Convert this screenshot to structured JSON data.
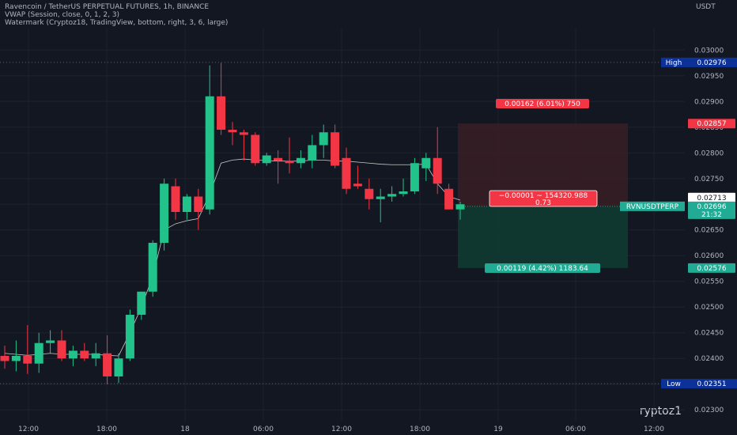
{
  "header": {
    "line1": "Ravencoin / TetherUS PERPETUAL FUTURES, 1h, BINANCE",
    "line2": "VWAP (Session, close, 0, 1, 2, 3)",
    "line3": "Watermark (Cryptoz18, TradingView, bottom, right, 3, 6, large)"
  },
  "currency": "USDT",
  "brand": "ryptoz1",
  "colors": {
    "bg": "#131722",
    "up": "#22ab94",
    "upBody": "#26c78f",
    "down": "#f23645",
    "vwap": "#c8c8c8",
    "grid": "#1e222d",
    "text": "#b2b5be",
    "profit": "#0f3d33",
    "loss": "#3a1e24",
    "high_label": "#0c3299"
  },
  "chart_data": {
    "type": "candlestick",
    "symbol": "RVNUSDTPERP",
    "x_ticks": [
      "12:00",
      "18:00",
      "18",
      "06:00",
      "12:00",
      "18:00",
      "19",
      "06:00",
      "12:00"
    ],
    "y_ticks": [
      "0.03000",
      "0.02950",
      "0.02900",
      "0.02850",
      "0.02800",
      "0.02750",
      "0.02700",
      "0.02650",
      "0.02600",
      "0.02550",
      "0.02500",
      "0.02450",
      "0.02400",
      "0.02350",
      "0.02300"
    ],
    "ylim": [
      0.02288,
      0.03042
    ],
    "high": {
      "label": "High",
      "value": "0.02976"
    },
    "low": {
      "label": "Low",
      "value": "0.02351"
    },
    "last_price": {
      "value": "0.02696",
      "countdown": "21:32"
    },
    "price_labels": [
      {
        "value": "0.02857",
        "kind": "stop"
      },
      {
        "value": "0.02713",
        "kind": "neutral"
      },
      {
        "value": "0.02695",
        "kind": "neutral"
      },
      {
        "value": "0.02576",
        "kind": "target"
      }
    ],
    "position": {
      "entry": 0.02696,
      "stop": 0.02857,
      "target": 0.02576,
      "stop_text": "0.00162 (6.01%) 750",
      "target_text": "0.00119 (4.42%) 1183.64",
      "center_line1": "−0.00001 ~ 154320.988",
      "center_line2": "0.73"
    },
    "candles": [
      {
        "o": 0.02405,
        "h": 0.02425,
        "l": 0.0238,
        "c": 0.02395
      },
      {
        "o": 0.02395,
        "h": 0.02435,
        "l": 0.02375,
        "c": 0.02405
      },
      {
        "o": 0.02405,
        "h": 0.02465,
        "l": 0.0237,
        "c": 0.0239
      },
      {
        "o": 0.0239,
        "h": 0.0245,
        "l": 0.02372,
        "c": 0.0243
      },
      {
        "o": 0.0243,
        "h": 0.02455,
        "l": 0.0241,
        "c": 0.02435
      },
      {
        "o": 0.02435,
        "h": 0.02455,
        "l": 0.02395,
        "c": 0.024
      },
      {
        "o": 0.024,
        "h": 0.02425,
        "l": 0.02385,
        "c": 0.02415
      },
      {
        "o": 0.02415,
        "h": 0.0243,
        "l": 0.02395,
        "c": 0.024
      },
      {
        "o": 0.024,
        "h": 0.0243,
        "l": 0.02385,
        "c": 0.0241
      },
      {
        "o": 0.0241,
        "h": 0.02445,
        "l": 0.0235,
        "c": 0.02365
      },
      {
        "o": 0.02365,
        "h": 0.0241,
        "l": 0.02352,
        "c": 0.024
      },
      {
        "o": 0.024,
        "h": 0.02495,
        "l": 0.02395,
        "c": 0.02485
      },
      {
        "o": 0.02485,
        "h": 0.0253,
        "l": 0.02475,
        "c": 0.0253
      },
      {
        "o": 0.0253,
        "h": 0.0263,
        "l": 0.0252,
        "c": 0.02625
      },
      {
        "o": 0.02625,
        "h": 0.0275,
        "l": 0.0261,
        "c": 0.0274
      },
      {
        "o": 0.02735,
        "h": 0.0275,
        "l": 0.0267,
        "c": 0.02685
      },
      {
        "o": 0.02685,
        "h": 0.0272,
        "l": 0.0267,
        "c": 0.02715
      },
      {
        "o": 0.02715,
        "h": 0.0273,
        "l": 0.0265,
        "c": 0.02685
      },
      {
        "o": 0.0269,
        "h": 0.0297,
        "l": 0.0268,
        "c": 0.0291
      },
      {
        "o": 0.0291,
        "h": 0.02975,
        "l": 0.02835,
        "c": 0.02845
      },
      {
        "o": 0.02845,
        "h": 0.0286,
        "l": 0.02815,
        "c": 0.0284
      },
      {
        "o": 0.0284,
        "h": 0.02845,
        "l": 0.02785,
        "c": 0.02835
      },
      {
        "o": 0.02835,
        "h": 0.0284,
        "l": 0.02775,
        "c": 0.0278
      },
      {
        "o": 0.0278,
        "h": 0.028,
        "l": 0.02775,
        "c": 0.02795
      },
      {
        "o": 0.0279,
        "h": 0.02805,
        "l": 0.0274,
        "c": 0.02785
      },
      {
        "o": 0.02785,
        "h": 0.0283,
        "l": 0.0276,
        "c": 0.0278
      },
      {
        "o": 0.0278,
        "h": 0.02805,
        "l": 0.0277,
        "c": 0.0279
      },
      {
        "o": 0.02785,
        "h": 0.02835,
        "l": 0.0277,
        "c": 0.02815
      },
      {
        "o": 0.02815,
        "h": 0.02855,
        "l": 0.0279,
        "c": 0.0284
      },
      {
        "o": 0.0284,
        "h": 0.02855,
        "l": 0.0277,
        "c": 0.02775
      },
      {
        "o": 0.0279,
        "h": 0.0281,
        "l": 0.0272,
        "c": 0.0273
      },
      {
        "o": 0.0274,
        "h": 0.02775,
        "l": 0.0273,
        "c": 0.02735
      },
      {
        "o": 0.0273,
        "h": 0.0275,
        "l": 0.0269,
        "c": 0.0271
      },
      {
        "o": 0.0271,
        "h": 0.0273,
        "l": 0.02665,
        "c": 0.02715
      },
      {
        "o": 0.02715,
        "h": 0.02735,
        "l": 0.02705,
        "c": 0.0272
      },
      {
        "o": 0.0272,
        "h": 0.0275,
        "l": 0.02715,
        "c": 0.02725
      },
      {
        "o": 0.02725,
        "h": 0.0279,
        "l": 0.0272,
        "c": 0.0278
      },
      {
        "o": 0.0277,
        "h": 0.028,
        "l": 0.02745,
        "c": 0.0279
      },
      {
        "o": 0.0279,
        "h": 0.0285,
        "l": 0.0272,
        "c": 0.0274
      },
      {
        "o": 0.0273,
        "h": 0.0274,
        "l": 0.0269,
        "c": 0.0269
      },
      {
        "o": 0.0269,
        "h": 0.02705,
        "l": 0.0267,
        "c": 0.027
      }
    ],
    "vwap": [
      0.0241,
      0.02408,
      0.02406,
      0.02408,
      0.0241,
      0.02408,
      0.02408,
      0.02408,
      0.02408,
      0.02406,
      0.02405,
      0.0245,
      0.025,
      0.0256,
      0.0265,
      0.02662,
      0.02668,
      0.02672,
      0.0272,
      0.0278,
      0.02786,
      0.02788,
      0.02786,
      0.02785,
      0.02784,
      0.02784,
      0.02784,
      0.02786,
      0.02786,
      0.02784,
      0.02784,
      0.02782,
      0.0278,
      0.02778,
      0.02777,
      0.02777,
      0.02777,
      0.02778,
      0.0274,
      0.02715,
      0.02708
    ]
  }
}
